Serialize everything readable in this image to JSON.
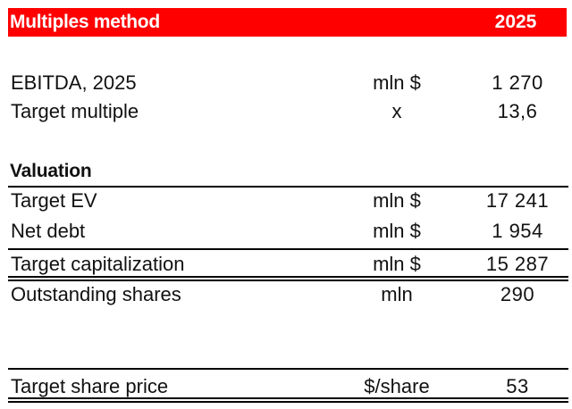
{
  "header": {
    "title": "Multiples method",
    "year": "2025"
  },
  "rows_top": [
    {
      "label": "EBITDA, 2025",
      "unit": "mln $",
      "value": "1 270"
    },
    {
      "label": "Target multiple",
      "unit": "x",
      "value": "13,6"
    }
  ],
  "valuation": {
    "title": "Valuation",
    "rows": [
      {
        "label": "Target EV",
        "unit": "mln $",
        "value": "17 241"
      },
      {
        "label": "Net debt",
        "unit": "mln $",
        "value": "1 954"
      },
      {
        "label": "Target capitalization",
        "unit": "mln $",
        "value": "15 287"
      },
      {
        "label": "Outstanding shares",
        "unit": "mln",
        "value": "290"
      }
    ]
  },
  "result": {
    "label": "Target share price",
    "unit": "$/share",
    "value": "53"
  }
}
